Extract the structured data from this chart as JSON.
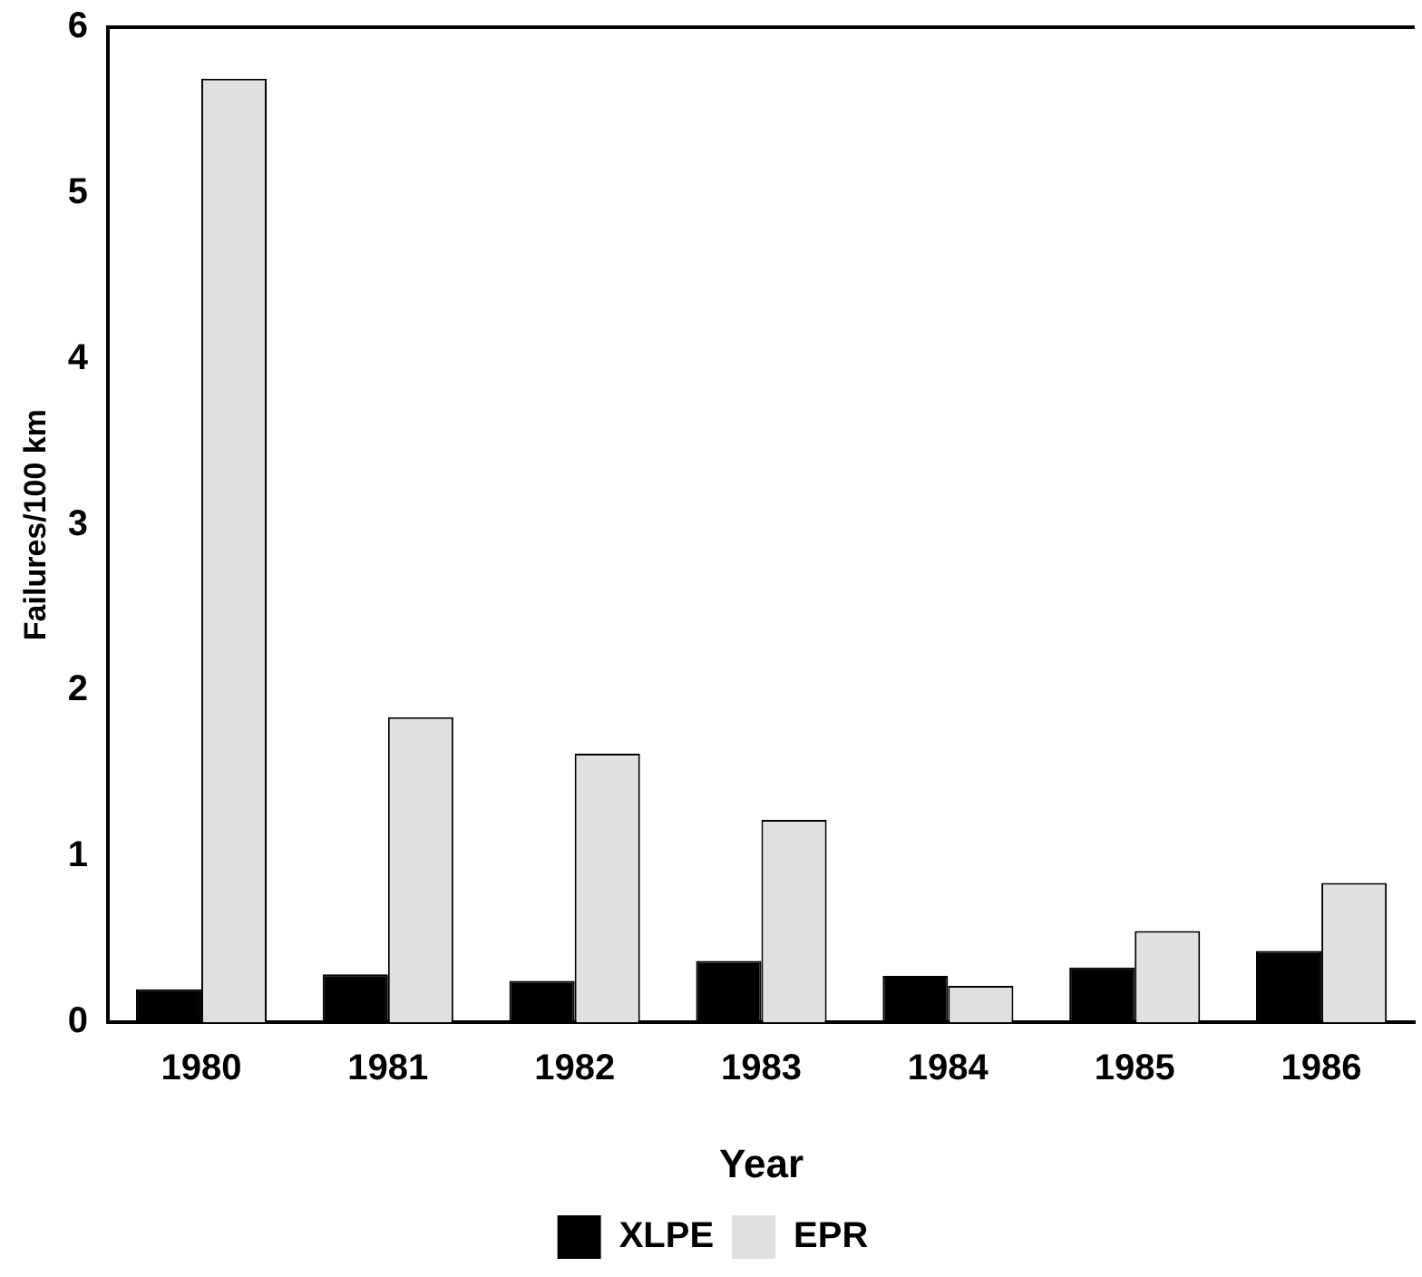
{
  "chart_data": {
    "type": "bar",
    "xlabel": "Year",
    "ylabel": "Failures/100 km",
    "categories": [
      "1980",
      "1981",
      "1982",
      "1983",
      "1984",
      "1985",
      "1986"
    ],
    "series": [
      {
        "name": "XLPE",
        "color": "#000000",
        "values": [
          0.2,
          0.29,
          0.25,
          0.37,
          0.28,
          0.33,
          0.43
        ]
      },
      {
        "name": "EPR",
        "color": "#e0e0e0",
        "values": [
          5.69,
          1.84,
          1.62,
          1.22,
          0.22,
          0.55,
          0.84
        ]
      }
    ],
    "ylim": [
      0,
      6
    ],
    "yticks": [
      0,
      1,
      2,
      3,
      4,
      5,
      6
    ],
    "grid": false,
    "legend": "bottom"
  }
}
